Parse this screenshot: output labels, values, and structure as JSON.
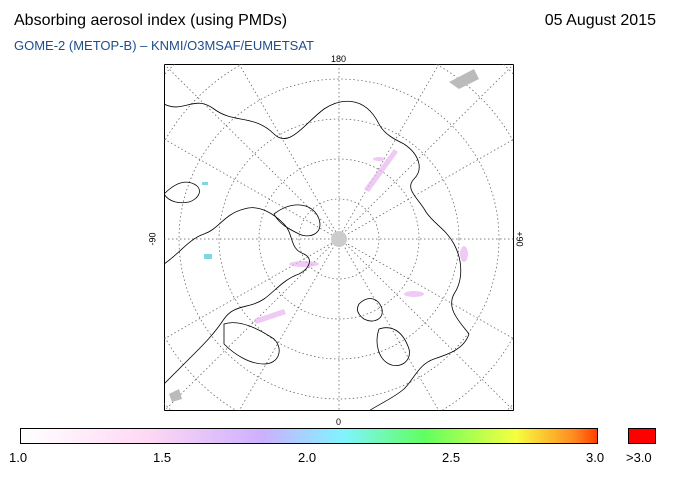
{
  "header": {
    "title": "Absorbing aerosol index (using PMDs)",
    "date": "05 August 2015",
    "subtitle": "GOME-2 (METOP-B)  –  KNMI/O3MSAF/EUMETSAT"
  },
  "map": {
    "projection": "polar-stereographic-north",
    "labels": {
      "top": "180",
      "bottom": "0",
      "left": "-90",
      "right": "+90"
    },
    "colors": {
      "coast": "#000000",
      "graticule": "#555555",
      "pole_fill": "#cccccc",
      "aerosol_traces": "#e8b4f0"
    }
  },
  "colorbar": {
    "ticks": [
      "1.0",
      "1.5",
      "2.0",
      "2.5",
      "3.0"
    ],
    "over_label": ">3.0",
    "colors": [
      "#ffffff",
      "#ffd8f4",
      "#ccb0ff",
      "#80f4ff",
      "#60ff60",
      "#f6ff40",
      "#ff8a20",
      "#ff4000"
    ],
    "over_color": "#ff0000"
  }
}
